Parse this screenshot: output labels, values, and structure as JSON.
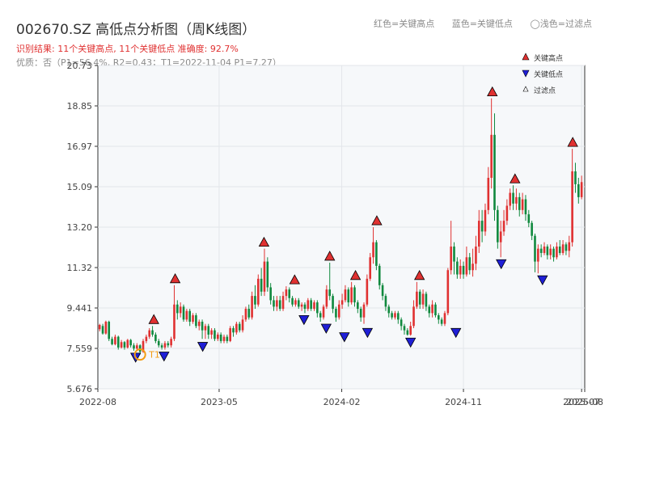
{
  "header": {
    "title": "002670.SZ 高低点分析图（周K线图）",
    "subtitle1": "识别结果: 11个关键高点, 11个关键低点   准确度: 92.7%",
    "subtitle2": "优质：否（P1=56.4%, R2=0.43；T1=2022-11-04 P1=7.27）",
    "legend_red": "红色=关键高点",
    "legend_blue": "蓝色=关键低点",
    "legend_light": "◯浅色=过滤点"
  },
  "colors": {
    "up": "#e03131",
    "down": "#10893e",
    "high": "#e03131",
    "low": "#1f1fd6",
    "bg": "#f6f8fa",
    "t1": "#f39c12"
  },
  "chart_data": {
    "type": "candlestick",
    "ylim": [
      5.676,
      20.73
    ],
    "yticks": [
      "20.73",
      "18.85",
      "16.97",
      "15.09",
      "13.20",
      "11.32",
      "9.441",
      "7.559",
      "5.676"
    ],
    "xticks": [
      "2022-08",
      "2023-05",
      "2024-02",
      "2024-11",
      "2025-07",
      "2025-08"
    ],
    "x_start": "2022-08-01",
    "x_end": "2025-08-01",
    "legend": {
      "high": "关键高点",
      "low": "关键低点",
      "filtered": "过滤点"
    },
    "t1_label": "T1",
    "t1": {
      "date": "2022-11-04",
      "price": 7.27
    },
    "key_highs": [
      {
        "date": "2022-12-05",
        "price": 8.6
      },
      {
        "date": "2023-01-22",
        "price": 10.5
      },
      {
        "date": "2023-08-10",
        "price": 12.2
      },
      {
        "date": "2023-10-18",
        "price": 10.45
      },
      {
        "date": "2024-01-05",
        "price": 11.55
      },
      {
        "date": "2024-03-03",
        "price": 10.65
      },
      {
        "date": "2024-04-20",
        "price": 13.2
      },
      {
        "date": "2024-07-25",
        "price": 10.65
      },
      {
        "date": "2025-01-05",
        "price": 19.2
      },
      {
        "date": "2025-02-25",
        "price": 15.15
      },
      {
        "date": "2025-07-05",
        "price": 16.85
      }
    ],
    "key_lows": [
      {
        "date": "2022-10-25",
        "price": 7.45
      },
      {
        "date": "2022-12-28",
        "price": 7.5
      },
      {
        "date": "2023-03-25",
        "price": 7.95
      },
      {
        "date": "2023-11-08",
        "price": 9.2
      },
      {
        "date": "2023-12-28",
        "price": 8.8
      },
      {
        "date": "2024-02-07",
        "price": 8.4
      },
      {
        "date": "2024-03-30",
        "price": 8.6
      },
      {
        "date": "2024-07-05",
        "price": 8.15
      },
      {
        "date": "2024-10-15",
        "price": 8.6
      },
      {
        "date": "2025-01-25",
        "price": 11.8
      },
      {
        "date": "2025-04-28",
        "price": 11.05
      }
    ],
    "ohlc": [
      [
        "2022-08-05",
        8.45,
        8.65,
        8.35,
        8.7
      ],
      [
        "2022-08-12",
        8.6,
        8.25,
        8.2,
        8.7
      ],
      [
        "2022-08-19",
        8.25,
        8.8,
        8.2,
        8.85
      ],
      [
        "2022-08-26",
        8.8,
        8.0,
        7.9,
        8.85
      ],
      [
        "2022-09-02",
        8.0,
        7.75,
        7.7,
        8.1
      ],
      [
        "2022-09-09",
        7.75,
        8.1,
        7.7,
        8.2
      ],
      [
        "2022-09-16",
        8.1,
        7.6,
        7.5,
        8.15
      ],
      [
        "2022-09-23",
        7.6,
        7.85,
        7.55,
        7.95
      ],
      [
        "2022-09-30",
        7.85,
        7.6,
        7.5,
        7.9
      ],
      [
        "2022-10-07",
        7.6,
        7.95,
        7.55,
        8.0
      ],
      [
        "2022-10-14",
        7.95,
        7.7,
        7.6,
        8.0
      ],
      [
        "2022-10-21",
        7.7,
        7.55,
        7.45,
        7.8
      ],
      [
        "2022-10-28",
        7.55,
        7.7,
        7.45,
        7.8
      ],
      [
        "2022-11-04",
        7.7,
        7.4,
        7.27,
        7.75
      ],
      [
        "2022-11-11",
        7.4,
        7.9,
        7.35,
        8.0
      ],
      [
        "2022-11-18",
        7.9,
        8.1,
        7.8,
        8.2
      ],
      [
        "2022-11-25",
        8.1,
        8.4,
        8.0,
        8.5
      ],
      [
        "2022-12-02",
        8.4,
        8.2,
        8.1,
        8.6
      ],
      [
        "2022-12-09",
        8.2,
        7.9,
        7.8,
        8.3
      ],
      [
        "2022-12-16",
        7.9,
        7.7,
        7.6,
        8.0
      ],
      [
        "2022-12-23",
        7.7,
        7.6,
        7.5,
        7.8
      ],
      [
        "2022-12-30",
        7.6,
        7.8,
        7.5,
        7.9
      ],
      [
        "2023-01-06",
        7.8,
        7.7,
        7.6,
        7.9
      ],
      [
        "2023-01-13",
        7.7,
        8.0,
        7.6,
        8.1
      ],
      [
        "2023-01-20",
        8.0,
        9.6,
        7.9,
        10.5
      ],
      [
        "2023-01-27",
        9.6,
        9.2,
        8.9,
        9.8
      ],
      [
        "2023-02-03",
        9.2,
        9.5,
        9.0,
        9.7
      ],
      [
        "2023-02-10",
        9.5,
        8.9,
        8.8,
        9.6
      ],
      [
        "2023-02-17",
        8.9,
        9.3,
        8.8,
        9.4
      ],
      [
        "2023-02-24",
        9.3,
        8.8,
        8.6,
        9.4
      ],
      [
        "2023-03-03",
        8.8,
        9.1,
        8.7,
        9.2
      ],
      [
        "2023-03-10",
        9.1,
        8.6,
        8.5,
        9.2
      ],
      [
        "2023-03-17",
        8.6,
        8.8,
        8.4,
        8.9
      ],
      [
        "2023-03-24",
        8.8,
        8.4,
        8.0,
        8.9
      ],
      [
        "2023-03-31",
        8.4,
        8.6,
        8.0,
        8.7
      ],
      [
        "2023-04-07",
        8.6,
        8.2,
        8.0,
        8.7
      ],
      [
        "2023-04-14",
        8.2,
        8.4,
        8.0,
        8.5
      ],
      [
        "2023-04-21",
        8.4,
        8.0,
        7.9,
        8.5
      ],
      [
        "2023-04-28",
        8.0,
        8.2,
        7.9,
        8.3
      ],
      [
        "2023-05-05",
        8.2,
        7.9,
        7.8,
        8.3
      ],
      [
        "2023-05-12",
        7.9,
        8.1,
        7.8,
        8.2
      ],
      [
        "2023-05-19",
        8.1,
        7.9,
        7.8,
        8.2
      ],
      [
        "2023-05-26",
        7.9,
        8.5,
        7.85,
        8.6
      ],
      [
        "2023-06-02",
        8.5,
        8.3,
        8.1,
        8.6
      ],
      [
        "2023-06-09",
        8.3,
        8.7,
        8.2,
        8.8
      ],
      [
        "2023-06-16",
        8.7,
        8.4,
        8.3,
        8.8
      ],
      [
        "2023-06-23",
        8.4,
        8.9,
        8.3,
        9.1
      ],
      [
        "2023-06-30",
        8.9,
        9.4,
        8.8,
        9.5
      ],
      [
        "2023-07-07",
        9.4,
        9.0,
        8.9,
        9.6
      ],
      [
        "2023-07-14",
        9.0,
        10.0,
        8.9,
        10.2
      ],
      [
        "2023-07-21",
        10.0,
        9.6,
        9.4,
        10.5
      ],
      [
        "2023-07-28",
        9.6,
        10.8,
        9.5,
        11.0
      ],
      [
        "2023-08-04",
        10.8,
        10.2,
        10.0,
        11.3
      ],
      [
        "2023-08-11",
        10.2,
        11.6,
        10.0,
        12.2
      ],
      [
        "2023-08-18",
        11.6,
        10.4,
        10.2,
        11.8
      ],
      [
        "2023-08-25",
        10.4,
        9.8,
        9.6,
        10.6
      ],
      [
        "2023-09-01",
        9.8,
        9.5,
        9.3,
        10.0
      ],
      [
        "2023-09-08",
        9.5,
        9.8,
        9.3,
        10.0
      ],
      [
        "2023-09-15",
        9.8,
        9.4,
        9.3,
        10.0
      ],
      [
        "2023-09-22",
        9.4,
        10.0,
        9.3,
        10.2
      ],
      [
        "2023-09-29",
        10.0,
        10.3,
        9.8,
        10.45
      ],
      [
        "2023-10-06",
        10.3,
        9.9,
        9.7,
        10.4
      ],
      [
        "2023-10-13",
        9.9,
        9.6,
        9.5,
        10.0
      ],
      [
        "2023-10-20",
        9.6,
        9.8,
        9.5,
        9.9
      ],
      [
        "2023-10-27",
        9.8,
        9.5,
        9.4,
        9.9
      ],
      [
        "2023-11-03",
        9.5,
        9.6,
        9.3,
        9.7
      ],
      [
        "2023-11-10",
        9.6,
        9.4,
        9.2,
        9.7
      ],
      [
        "2023-11-17",
        9.4,
        9.8,
        9.3,
        9.9
      ],
      [
        "2023-11-24",
        9.8,
        9.4,
        9.3,
        9.9
      ],
      [
        "2023-12-01",
        9.4,
        9.7,
        9.3,
        9.8
      ],
      [
        "2023-12-08",
        9.7,
        9.2,
        9.0,
        9.8
      ],
      [
        "2023-12-15",
        9.2,
        9.0,
        8.8,
        9.3
      ],
      [
        "2023-12-22",
        9.0,
        9.5,
        8.9,
        9.6
      ],
      [
        "2023-12-29",
        9.5,
        10.3,
        9.4,
        10.5
      ],
      [
        "2024-01-05",
        10.3,
        10.0,
        9.8,
        11.55
      ],
      [
        "2024-01-12",
        10.0,
        9.4,
        9.2,
        10.1
      ],
      [
        "2024-01-19",
        9.4,
        9.0,
        8.8,
        9.5
      ],
      [
        "2024-01-26",
        9.0,
        9.6,
        8.9,
        9.8
      ],
      [
        "2024-02-02",
        9.6,
        9.8,
        9.4,
        10.1
      ],
      [
        "2024-02-09",
        9.8,
        10.3,
        9.7,
        10.5
      ],
      [
        "2024-02-16",
        10.3,
        9.7,
        9.5,
        10.4
      ],
      [
        "2024-02-23",
        9.7,
        10.4,
        9.6,
        10.65
      ],
      [
        "2024-03-01",
        10.4,
        9.7,
        9.5,
        10.5
      ],
      [
        "2024-03-08",
        9.7,
        9.4,
        9.2,
        9.8
      ],
      [
        "2024-03-15",
        9.4,
        9.0,
        8.8,
        9.5
      ],
      [
        "2024-03-22",
        9.0,
        9.6,
        8.7,
        9.7
      ],
      [
        "2024-03-29",
        9.6,
        10.8,
        9.5,
        11.0
      ],
      [
        "2024-04-05",
        10.8,
        11.8,
        10.7,
        12.0
      ],
      [
        "2024-04-12",
        11.8,
        12.5,
        11.5,
        13.2
      ],
      [
        "2024-04-19",
        12.5,
        11.4,
        11.2,
        12.6
      ],
      [
        "2024-04-26",
        11.4,
        10.5,
        10.3,
        11.5
      ],
      [
        "2024-05-03",
        10.5,
        10.0,
        9.8,
        10.6
      ],
      [
        "2024-05-10",
        10.0,
        9.5,
        9.3,
        10.1
      ],
      [
        "2024-05-17",
        9.5,
        9.2,
        9.0,
        9.6
      ],
      [
        "2024-05-24",
        9.2,
        9.0,
        8.9,
        9.3
      ],
      [
        "2024-05-31",
        9.0,
        9.2,
        8.9,
        9.3
      ],
      [
        "2024-06-07",
        9.2,
        8.9,
        8.7,
        9.3
      ],
      [
        "2024-06-14",
        8.9,
        8.6,
        8.4,
        9.0
      ],
      [
        "2024-06-21",
        8.6,
        8.4,
        8.2,
        8.7
      ],
      [
        "2024-06-28",
        8.4,
        8.2,
        8.15,
        8.5
      ],
      [
        "2024-07-05",
        8.2,
        8.6,
        8.15,
        8.8
      ],
      [
        "2024-07-12",
        8.6,
        9.5,
        8.5,
        9.8
      ],
      [
        "2024-07-19",
        9.5,
        10.2,
        9.4,
        10.65
      ],
      [
        "2024-07-26",
        10.2,
        9.6,
        9.4,
        10.3
      ],
      [
        "2024-08-02",
        9.6,
        10.1,
        9.4,
        10.3
      ],
      [
        "2024-08-09",
        10.1,
        9.5,
        9.3,
        10.2
      ],
      [
        "2024-08-16",
        9.5,
        9.2,
        9.0,
        9.6
      ],
      [
        "2024-08-23",
        9.2,
        9.6,
        9.0,
        9.8
      ],
      [
        "2024-08-30",
        9.6,
        9.1,
        9.0,
        9.7
      ],
      [
        "2024-09-06",
        9.1,
        8.9,
        8.7,
        9.2
      ],
      [
        "2024-09-13",
        8.9,
        8.7,
        8.6,
        9.0
      ],
      [
        "2024-09-20",
        8.7,
        9.2,
        8.6,
        9.3
      ],
      [
        "2024-09-27",
        9.2,
        11.2,
        9.1,
        11.3
      ],
      [
        "2024-10-04",
        11.2,
        12.3,
        11.0,
        13.5
      ],
      [
        "2024-10-11",
        12.3,
        11.6,
        11.0,
        12.5
      ],
      [
        "2024-10-18",
        11.6,
        11.0,
        10.8,
        11.8
      ],
      [
        "2024-10-25",
        11.0,
        11.4,
        10.8,
        11.7
      ],
      [
        "2024-11-01",
        11.4,
        11.0,
        10.8,
        11.6
      ],
      [
        "2024-11-08",
        11.0,
        11.8,
        10.9,
        12.3
      ],
      [
        "2024-11-15",
        11.8,
        11.2,
        11.0,
        12.0
      ],
      [
        "2024-11-22",
        11.2,
        11.5,
        10.9,
        12.2
      ],
      [
        "2024-11-29",
        11.5,
        12.3,
        11.2,
        12.8
      ],
      [
        "2024-12-06",
        12.3,
        13.5,
        12.0,
        14.0
      ],
      [
        "2024-12-13",
        13.5,
        13.0,
        12.5,
        14.0
      ],
      [
        "2024-12-20",
        13.0,
        14.0,
        12.8,
        14.3
      ],
      [
        "2024-12-27",
        14.0,
        15.5,
        13.8,
        16.0
      ],
      [
        "2025-01-03",
        15.5,
        17.5,
        15.0,
        19.2
      ],
      [
        "2025-01-10",
        17.5,
        14.0,
        13.5,
        18.5
      ],
      [
        "2025-01-17",
        14.0,
        12.5,
        12.2,
        14.2
      ],
      [
        "2025-01-24",
        12.5,
        13.0,
        11.8,
        13.5
      ],
      [
        "2025-01-31",
        13.0,
        13.5,
        12.8,
        14.0
      ],
      [
        "2025-02-07",
        13.5,
        14.2,
        13.3,
        14.5
      ],
      [
        "2025-02-14",
        14.2,
        14.8,
        14.0,
        15.0
      ],
      [
        "2025-02-21",
        14.8,
        14.3,
        14.0,
        15.15
      ],
      [
        "2025-02-28",
        14.3,
        14.6,
        14.0,
        15.0
      ],
      [
        "2025-03-07",
        14.6,
        14.0,
        13.7,
        14.8
      ],
      [
        "2025-03-14",
        14.0,
        14.5,
        13.8,
        14.8
      ],
      [
        "2025-03-21",
        14.5,
        13.8,
        13.5,
        14.7
      ],
      [
        "2025-03-28",
        13.8,
        13.4,
        13.2,
        14.0
      ],
      [
        "2025-04-04",
        13.4,
        12.8,
        12.6,
        13.5
      ],
      [
        "2025-04-11",
        12.8,
        11.6,
        11.1,
        12.9
      ],
      [
        "2025-04-18",
        11.6,
        12.2,
        11.05,
        12.4
      ],
      [
        "2025-04-25",
        12.2,
        12.0,
        11.8,
        12.4
      ],
      [
        "2025-05-02",
        12.0,
        12.3,
        11.9,
        12.5
      ],
      [
        "2025-05-09",
        12.3,
        11.9,
        11.7,
        12.4
      ],
      [
        "2025-05-16",
        11.9,
        12.2,
        11.7,
        12.4
      ],
      [
        "2025-05-23",
        12.2,
        11.8,
        11.6,
        12.3
      ],
      [
        "2025-05-30",
        11.8,
        12.3,
        11.7,
        12.5
      ],
      [
        "2025-06-06",
        12.3,
        12.0,
        11.9,
        12.6
      ],
      [
        "2025-06-13",
        12.0,
        12.4,
        11.9,
        12.6
      ],
      [
        "2025-06-20",
        12.4,
        12.1,
        11.9,
        12.5
      ],
      [
        "2025-06-27",
        12.1,
        12.5,
        11.8,
        12.8
      ],
      [
        "2025-07-04",
        12.5,
        15.8,
        12.3,
        16.85
      ],
      [
        "2025-07-11",
        15.8,
        15.2,
        14.8,
        16.2
      ],
      [
        "2025-07-18",
        15.2,
        14.6,
        14.3,
        15.5
      ],
      [
        "2025-07-25",
        14.6,
        15.3,
        14.5,
        15.6
      ]
    ]
  }
}
